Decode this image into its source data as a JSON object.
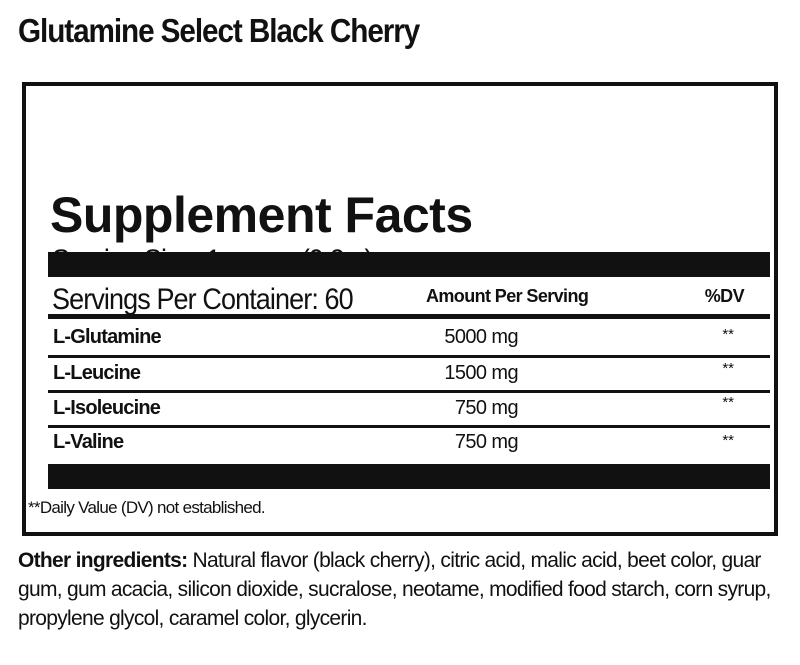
{
  "product_title": "Glutamine Select Black Cherry",
  "panel": {
    "heading": "Supplement Facts",
    "serving_size": "Serving Size: 1 scoop (9.2 g)",
    "servings_per_container": "Servings Per Container: 60",
    "col_amount": "Amount Per Serving",
    "col_dv": "%DV",
    "rows": [
      {
        "name": "L-Glutamine",
        "amount": "5000 mg",
        "dv": "**"
      },
      {
        "name": "L-Leucine",
        "amount": "1500 mg",
        "dv": "**"
      },
      {
        "name": "L-Isoleucine",
        "amount": "750 mg",
        "dv": "**"
      },
      {
        "name": "L-Valine",
        "amount": "750 mg",
        "dv": "**"
      }
    ],
    "footnote": "**Daily Value (DV) not established."
  },
  "other_ingredients": {
    "label": "Other ingredients:",
    "text": " Natural flavor (black cherry), citric acid, malic acid, beet color, guar gum, gum acacia, silicon dioxide, sucralose, neotame, modified food starch, corn syrup, propylene glycol, caramel color, glycerin."
  }
}
